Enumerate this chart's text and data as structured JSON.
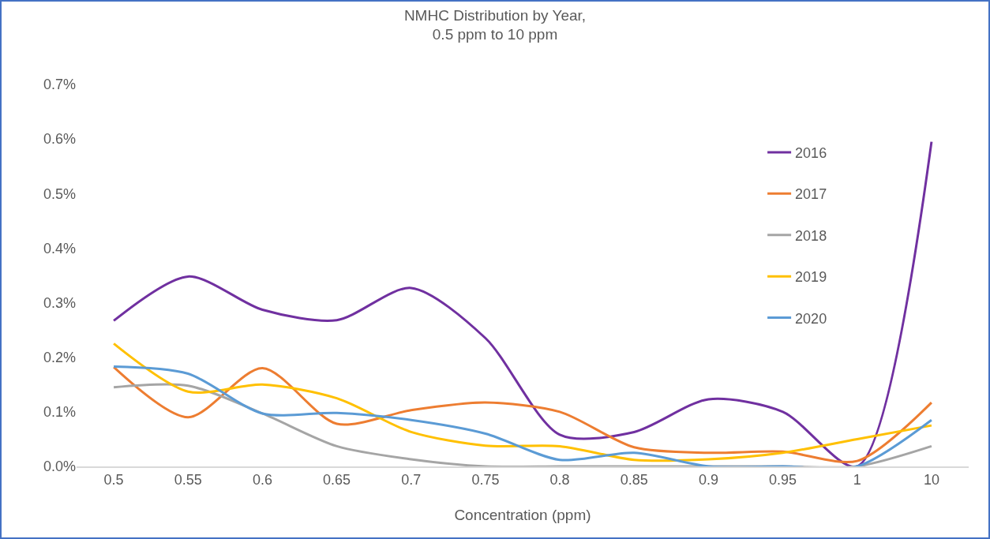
{
  "chart_data": {
    "type": "line",
    "title": "NMHC Distribution by Year,\n0.5 ppm to 10 ppm",
    "xlabel": "Concentration (ppm)",
    "categories": [
      "0.5",
      "0.55",
      "0.6",
      "0.65",
      "0.7",
      "0.75",
      "0.8",
      "0.85",
      "0.9",
      "0.95",
      "1",
      "10"
    ],
    "series": [
      {
        "name": "2016",
        "color": "#7030a0",
        "values": [
          0.267,
          0.348,
          0.287,
          0.268,
          0.327,
          0.235,
          0.058,
          0.063,
          0.123,
          0.1,
          0,
          0.595
        ]
      },
      {
        "name": "2017",
        "color": "#ed7d31",
        "values": [
          0.182,
          0.09,
          0.18,
          0.078,
          0.103,
          0.117,
          0.1,
          0.035,
          0.025,
          0.027,
          0.01,
          0.117
        ]
      },
      {
        "name": "2018",
        "color": "#a5a5a5",
        "values": [
          0.145,
          0.148,
          0.097,
          0.037,
          0.013,
          0,
          0,
          0,
          0,
          0,
          0,
          0.037
        ]
      },
      {
        "name": "2019",
        "color": "#ffc000",
        "values": [
          0.225,
          0.137,
          0.15,
          0.125,
          0.063,
          0.038,
          0.037,
          0.012,
          0.013,
          0.025,
          0.05,
          0.075
        ]
      },
      {
        "name": "2020",
        "color": "#5b9bd5",
        "values": [
          0.183,
          0.17,
          0.097,
          0.098,
          0.085,
          0.06,
          0.012,
          0.025,
          0,
          0,
          0,
          0.085
        ]
      }
    ],
    "ylim": [
      0,
      0.7
    ],
    "yticks": [
      {
        "value": 0,
        "label": "0.0%"
      },
      {
        "value": 0.1,
        "label": "0.1%"
      },
      {
        "value": 0.2,
        "label": "0.2%"
      },
      {
        "value": 0.3,
        "label": "0.3%"
      },
      {
        "value": 0.4,
        "label": "0.4%"
      },
      {
        "value": 0.5,
        "label": "0.5%"
      },
      {
        "value": 0.6,
        "label": "0.6%"
      },
      {
        "value": 0.7,
        "label": "0.7%"
      }
    ],
    "grid": false,
    "legend": "right",
    "marker": "none",
    "line_style": "solid"
  }
}
